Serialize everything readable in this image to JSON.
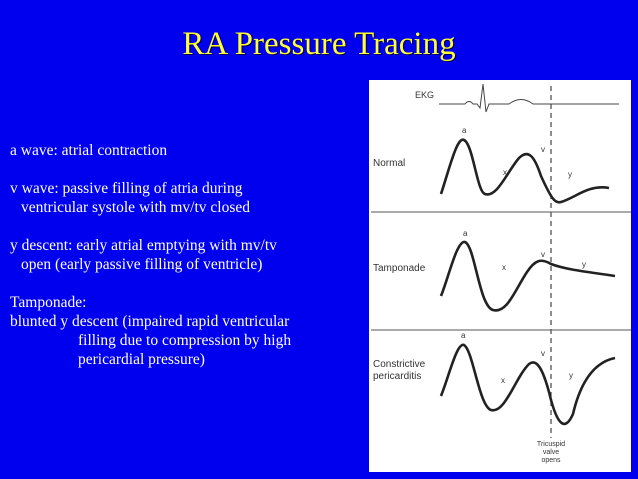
{
  "title": "RA Pressure Tracing",
  "bullets": [
    {
      "lines": [
        "a wave: atrial contraction"
      ]
    },
    {
      "lines": [
        "v wave: passive filling of atria during",
        "ventricular systole with mv/tv closed"
      ]
    },
    {
      "lines": [
        "y descent: early atrial emptying with mv/tv",
        "open (early passive filling of ventricle)"
      ]
    },
    {
      "lines": [
        "Tamponade:",
        "blunted y descent (impaired rapid ventricular",
        "filling due to compression by high",
        "pericardial pressure)"
      ]
    }
  ],
  "figure": {
    "ekg_label": "EKG",
    "panels": [
      {
        "label_lines": [
          "Normal"
        ],
        "a": "a",
        "v": "v",
        "x": "x",
        "y": "y"
      },
      {
        "label_lines": [
          "Tamponade"
        ],
        "a": "a",
        "v": "v",
        "x": "x",
        "y": "y"
      },
      {
        "label_lines": [
          "Constrictive",
          "pericarditis"
        ],
        "a": "a",
        "v": "v",
        "x": "x",
        "y": "y"
      }
    ],
    "valve_label_lines": [
      "Tricuspid",
      "valve",
      "opens"
    ]
  }
}
